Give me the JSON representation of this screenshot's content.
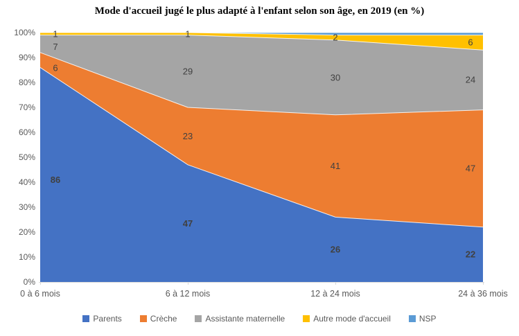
{
  "chart_data": {
    "type": "area",
    "stacked": "100%",
    "title": "Mode d'accueil jugé le plus adapté à l'enfant selon son âge, en 2019 (en %)",
    "categories": [
      "0 à 6 mois",
      "6 à 12 mois",
      "12 à 24 mois",
      "24 à 36 mois"
    ],
    "series": [
      {
        "name": "Parents",
        "color": "#4472C4",
        "values": [
          86,
          47,
          26,
          22
        ],
        "show_labels": true,
        "bold_labels": true
      },
      {
        "name": "Crèche",
        "color": "#ED7D31",
        "values": [
          6,
          23,
          41,
          47
        ],
        "show_labels": true,
        "bold_labels": false
      },
      {
        "name": "Assistante maternelle",
        "color": "#A5A5A5",
        "values": [
          7,
          29,
          30,
          24
        ],
        "show_labels": true,
        "bold_labels": false
      },
      {
        "name": "Autre mode d'accueil",
        "color": "#FFC000",
        "values": [
          1,
          1,
          2,
          6
        ],
        "show_labels": true,
        "bold_labels": false
      },
      {
        "name": "NSP",
        "color": "#5B9BD5",
        "values": [
          0,
          0,
          1,
          1
        ],
        "show_labels": false,
        "bold_labels": false
      }
    ],
    "y_axis": {
      "min": 0,
      "max": 100,
      "tick_labels": [
        "0%",
        "10%",
        "20%",
        "30%",
        "40%",
        "50%",
        "60%",
        "70%",
        "80%",
        "90%",
        "100%"
      ]
    },
    "legend_position": "bottom",
    "grid": false
  },
  "colors": {
    "axis_text": "#595959",
    "data_label": "#404040",
    "axis_line": "#D9D9D9",
    "background": "#FFFFFF"
  }
}
